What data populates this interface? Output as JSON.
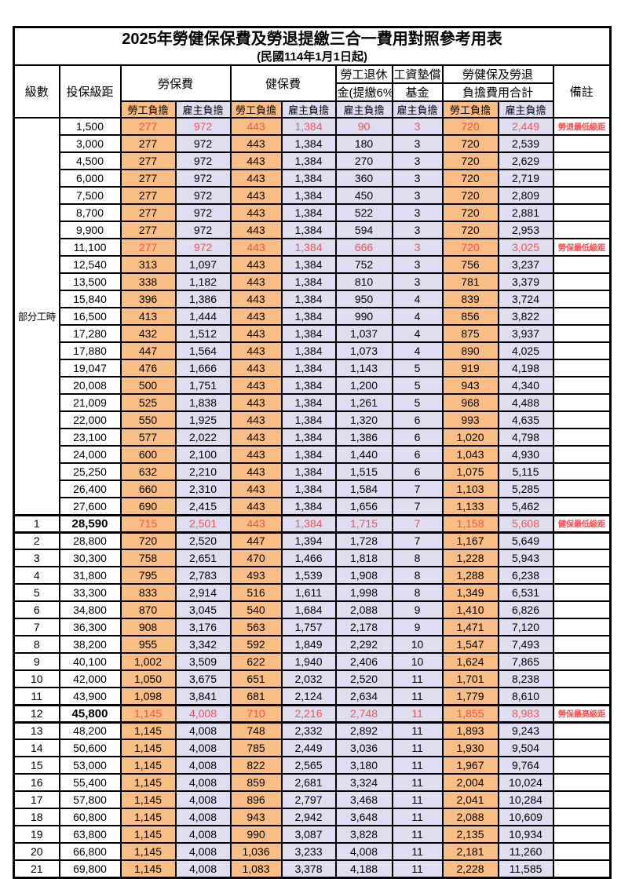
{
  "title": "2025年勞健保保費及勞退提繳三合一費用對照參考用表",
  "subtitle": "(民國114年1月1日起)",
  "header": {
    "level": "級數",
    "bracket": "投保級距",
    "labor_ins": "勞保費",
    "health_ins": "健保費",
    "pension_line1": "勞工退休",
    "pension_line2": "金(提繳6%)",
    "wage_fund_line1": "工資墊償",
    "wage_fund_line2": "基金",
    "total_line1": "勞健保及勞退",
    "total_line2": "負擔費用合計",
    "remark": "備註",
    "employee": "勞工負擔",
    "employer": "雇主負擔"
  },
  "section": {
    "label": "部分工時",
    "span": 23
  },
  "colors": {
    "employee_fill": "#F9BE85",
    "employer_fill": "#DFDEF1",
    "highlight_red": "#FF4D4D",
    "grid": "#000000",
    "background": "#FFFFFF"
  },
  "rows": [
    {
      "level": "",
      "bracket": "1,500",
      "v": [
        "277",
        "972",
        "443",
        "1,384",
        "90",
        "3",
        "720",
        "2,449"
      ],
      "remark": "勞退最低級距",
      "red": true,
      "em": false
    },
    {
      "level": "",
      "bracket": "3,000",
      "v": [
        "277",
        "972",
        "443",
        "1,384",
        "180",
        "3",
        "720",
        "2,539"
      ],
      "remark": "",
      "red": false,
      "em": false
    },
    {
      "level": "",
      "bracket": "4,500",
      "v": [
        "277",
        "972",
        "443",
        "1,384",
        "270",
        "3",
        "720",
        "2,629"
      ],
      "remark": "",
      "red": false,
      "em": false
    },
    {
      "level": "",
      "bracket": "6,000",
      "v": [
        "277",
        "972",
        "443",
        "1,384",
        "360",
        "3",
        "720",
        "2,719"
      ],
      "remark": "",
      "red": false,
      "em": false
    },
    {
      "level": "",
      "bracket": "7,500",
      "v": [
        "277",
        "972",
        "443",
        "1,384",
        "450",
        "3",
        "720",
        "2,809"
      ],
      "remark": "",
      "red": false,
      "em": false
    },
    {
      "level": "",
      "bracket": "8,700",
      "v": [
        "277",
        "972",
        "443",
        "1,384",
        "522",
        "3",
        "720",
        "2,881"
      ],
      "remark": "",
      "red": false,
      "em": false
    },
    {
      "level": "",
      "bracket": "9,900",
      "v": [
        "277",
        "972",
        "443",
        "1,384",
        "594",
        "3",
        "720",
        "2,953"
      ],
      "remark": "",
      "red": false,
      "em": false
    },
    {
      "level": "",
      "bracket": "11,100",
      "v": [
        "277",
        "972",
        "443",
        "1,384",
        "666",
        "3",
        "720",
        "3,025"
      ],
      "remark": "勞保最低級距",
      "red": true,
      "em": false
    },
    {
      "level": "",
      "bracket": "12,540",
      "v": [
        "313",
        "1,097",
        "443",
        "1,384",
        "752",
        "3",
        "756",
        "3,237"
      ],
      "remark": "",
      "red": false,
      "em": false
    },
    {
      "level": "",
      "bracket": "13,500",
      "v": [
        "338",
        "1,182",
        "443",
        "1,384",
        "810",
        "3",
        "781",
        "3,379"
      ],
      "remark": "",
      "red": false,
      "em": false
    },
    {
      "level": "",
      "bracket": "15,840",
      "v": [
        "396",
        "1,386",
        "443",
        "1,384",
        "950",
        "4",
        "839",
        "3,724"
      ],
      "remark": "",
      "red": false,
      "em": false
    },
    {
      "level": "",
      "bracket": "16,500",
      "v": [
        "413",
        "1,444",
        "443",
        "1,384",
        "990",
        "4",
        "856",
        "3,822"
      ],
      "remark": "",
      "red": false,
      "em": false
    },
    {
      "level": "",
      "bracket": "17,280",
      "v": [
        "432",
        "1,512",
        "443",
        "1,384",
        "1,037",
        "4",
        "875",
        "3,937"
      ],
      "remark": "",
      "red": false,
      "em": false
    },
    {
      "level": "",
      "bracket": "17,880",
      "v": [
        "447",
        "1,564",
        "443",
        "1,384",
        "1,073",
        "4",
        "890",
        "4,025"
      ],
      "remark": "",
      "red": false,
      "em": false
    },
    {
      "level": "",
      "bracket": "19,047",
      "v": [
        "476",
        "1,666",
        "443",
        "1,384",
        "1,143",
        "5",
        "919",
        "4,198"
      ],
      "remark": "",
      "red": false,
      "em": false
    },
    {
      "level": "",
      "bracket": "20,008",
      "v": [
        "500",
        "1,751",
        "443",
        "1,384",
        "1,200",
        "5",
        "943",
        "4,340"
      ],
      "remark": "",
      "red": false,
      "em": false
    },
    {
      "level": "",
      "bracket": "21,009",
      "v": [
        "525",
        "1,838",
        "443",
        "1,384",
        "1,261",
        "5",
        "968",
        "4,488"
      ],
      "remark": "",
      "red": false,
      "em": false
    },
    {
      "level": "",
      "bracket": "22,000",
      "v": [
        "550",
        "1,925",
        "443",
        "1,384",
        "1,320",
        "6",
        "993",
        "4,635"
      ],
      "remark": "",
      "red": false,
      "em": false
    },
    {
      "level": "",
      "bracket": "23,100",
      "v": [
        "577",
        "2,022",
        "443",
        "1,384",
        "1,386",
        "6",
        "1,020",
        "4,798"
      ],
      "remark": "",
      "red": false,
      "em": false
    },
    {
      "level": "",
      "bracket": "24,000",
      "v": [
        "600",
        "2,100",
        "443",
        "1,384",
        "1,440",
        "6",
        "1,043",
        "4,930"
      ],
      "remark": "",
      "red": false,
      "em": false
    },
    {
      "level": "",
      "bracket": "25,250",
      "v": [
        "632",
        "2,210",
        "443",
        "1,384",
        "1,515",
        "6",
        "1,075",
        "5,115"
      ],
      "remark": "",
      "red": false,
      "em": false
    },
    {
      "level": "",
      "bracket": "26,400",
      "v": [
        "660",
        "2,310",
        "443",
        "1,384",
        "1,584",
        "7",
        "1,103",
        "5,285"
      ],
      "remark": "",
      "red": false,
      "em": false
    },
    {
      "level": "",
      "bracket": "27,600",
      "v": [
        "690",
        "2,415",
        "443",
        "1,384",
        "1,656",
        "7",
        "1,133",
        "5,462"
      ],
      "remark": "",
      "red": false,
      "em": false
    },
    {
      "level": "1",
      "bracket": "28,590",
      "v": [
        "715",
        "2,501",
        "443",
        "1,384",
        "1,715",
        "7",
        "1,158",
        "5,608"
      ],
      "remark": "健保最低級距",
      "red": true,
      "em": true
    },
    {
      "level": "2",
      "bracket": "28,800",
      "v": [
        "720",
        "2,520",
        "447",
        "1,394",
        "1,728",
        "7",
        "1,167",
        "5,649"
      ],
      "remark": "",
      "red": false,
      "em": false
    },
    {
      "level": "3",
      "bracket": "30,300",
      "v": [
        "758",
        "2,651",
        "470",
        "1,466",
        "1,818",
        "8",
        "1,228",
        "5,943"
      ],
      "remark": "",
      "red": false,
      "em": false
    },
    {
      "level": "4",
      "bracket": "31,800",
      "v": [
        "795",
        "2,783",
        "493",
        "1,539",
        "1,908",
        "8",
        "1,288",
        "6,238"
      ],
      "remark": "",
      "red": false,
      "em": false
    },
    {
      "level": "5",
      "bracket": "33,300",
      "v": [
        "833",
        "2,914",
        "516",
        "1,611",
        "1,998",
        "8",
        "1,349",
        "6,531"
      ],
      "remark": "",
      "red": false,
      "em": false
    },
    {
      "level": "6",
      "bracket": "34,800",
      "v": [
        "870",
        "3,045",
        "540",
        "1,684",
        "2,088",
        "9",
        "1,410",
        "6,826"
      ],
      "remark": "",
      "red": false,
      "em": false
    },
    {
      "level": "7",
      "bracket": "36,300",
      "v": [
        "908",
        "3,176",
        "563",
        "1,757",
        "2,178",
        "9",
        "1,471",
        "7,120"
      ],
      "remark": "",
      "red": false,
      "em": false
    },
    {
      "level": "8",
      "bracket": "38,200",
      "v": [
        "955",
        "3,342",
        "592",
        "1,849",
        "2,292",
        "10",
        "1,547",
        "7,493"
      ],
      "remark": "",
      "red": false,
      "em": false
    },
    {
      "level": "9",
      "bracket": "40,100",
      "v": [
        "1,002",
        "3,509",
        "622",
        "1,940",
        "2,406",
        "10",
        "1,624",
        "7,865"
      ],
      "remark": "",
      "red": false,
      "em": false
    },
    {
      "level": "10",
      "bracket": "42,000",
      "v": [
        "1,050",
        "3,675",
        "651",
        "2,032",
        "2,520",
        "11",
        "1,701",
        "8,238"
      ],
      "remark": "",
      "red": false,
      "em": false
    },
    {
      "level": "11",
      "bracket": "43,900",
      "v": [
        "1,098",
        "3,841",
        "681",
        "2,124",
        "2,634",
        "11",
        "1,779",
        "8,610"
      ],
      "remark": "",
      "red": false,
      "em": false
    },
    {
      "level": "12",
      "bracket": "45,800",
      "v": [
        "1,145",
        "4,008",
        "710",
        "2,216",
        "2,748",
        "11",
        "1,855",
        "8,983"
      ],
      "remark": "勞保最高級距",
      "red": true,
      "em": true
    },
    {
      "level": "13",
      "bracket": "48,200",
      "v": [
        "1,145",
        "4,008",
        "748",
        "2,332",
        "2,892",
        "11",
        "1,893",
        "9,243"
      ],
      "remark": "",
      "red": false,
      "em": false
    },
    {
      "level": "14",
      "bracket": "50,600",
      "v": [
        "1,145",
        "4,008",
        "785",
        "2,449",
        "3,036",
        "11",
        "1,930",
        "9,504"
      ],
      "remark": "",
      "red": false,
      "em": false
    },
    {
      "level": "15",
      "bracket": "53,000",
      "v": [
        "1,145",
        "4,008",
        "822",
        "2,565",
        "3,180",
        "11",
        "1,967",
        "9,764"
      ],
      "remark": "",
      "red": false,
      "em": false
    },
    {
      "level": "16",
      "bracket": "55,400",
      "v": [
        "1,145",
        "4,008",
        "859",
        "2,681",
        "3,324",
        "11",
        "2,004",
        "10,024"
      ],
      "remark": "",
      "red": false,
      "em": false
    },
    {
      "level": "17",
      "bracket": "57,800",
      "v": [
        "1,145",
        "4,008",
        "896",
        "2,797",
        "3,468",
        "11",
        "2,041",
        "10,284"
      ],
      "remark": "",
      "red": false,
      "em": false
    },
    {
      "level": "18",
      "bracket": "60,800",
      "v": [
        "1,145",
        "4,008",
        "943",
        "2,942",
        "3,648",
        "11",
        "2,088",
        "10,609"
      ],
      "remark": "",
      "red": false,
      "em": false
    },
    {
      "level": "19",
      "bracket": "63,800",
      "v": [
        "1,145",
        "4,008",
        "990",
        "3,087",
        "3,828",
        "11",
        "2,135",
        "10,934"
      ],
      "remark": "",
      "red": false,
      "em": false
    },
    {
      "level": "20",
      "bracket": "66,800",
      "v": [
        "1,145",
        "4,008",
        "1,036",
        "3,233",
        "4,008",
        "11",
        "2,181",
        "11,260"
      ],
      "remark": "",
      "red": false,
      "em": false
    },
    {
      "level": "21",
      "bracket": "69,800",
      "v": [
        "1,145",
        "4,008",
        "1,083",
        "3,378",
        "4,188",
        "11",
        "2,228",
        "11,585"
      ],
      "remark": "",
      "red": false,
      "em": false
    }
  ]
}
